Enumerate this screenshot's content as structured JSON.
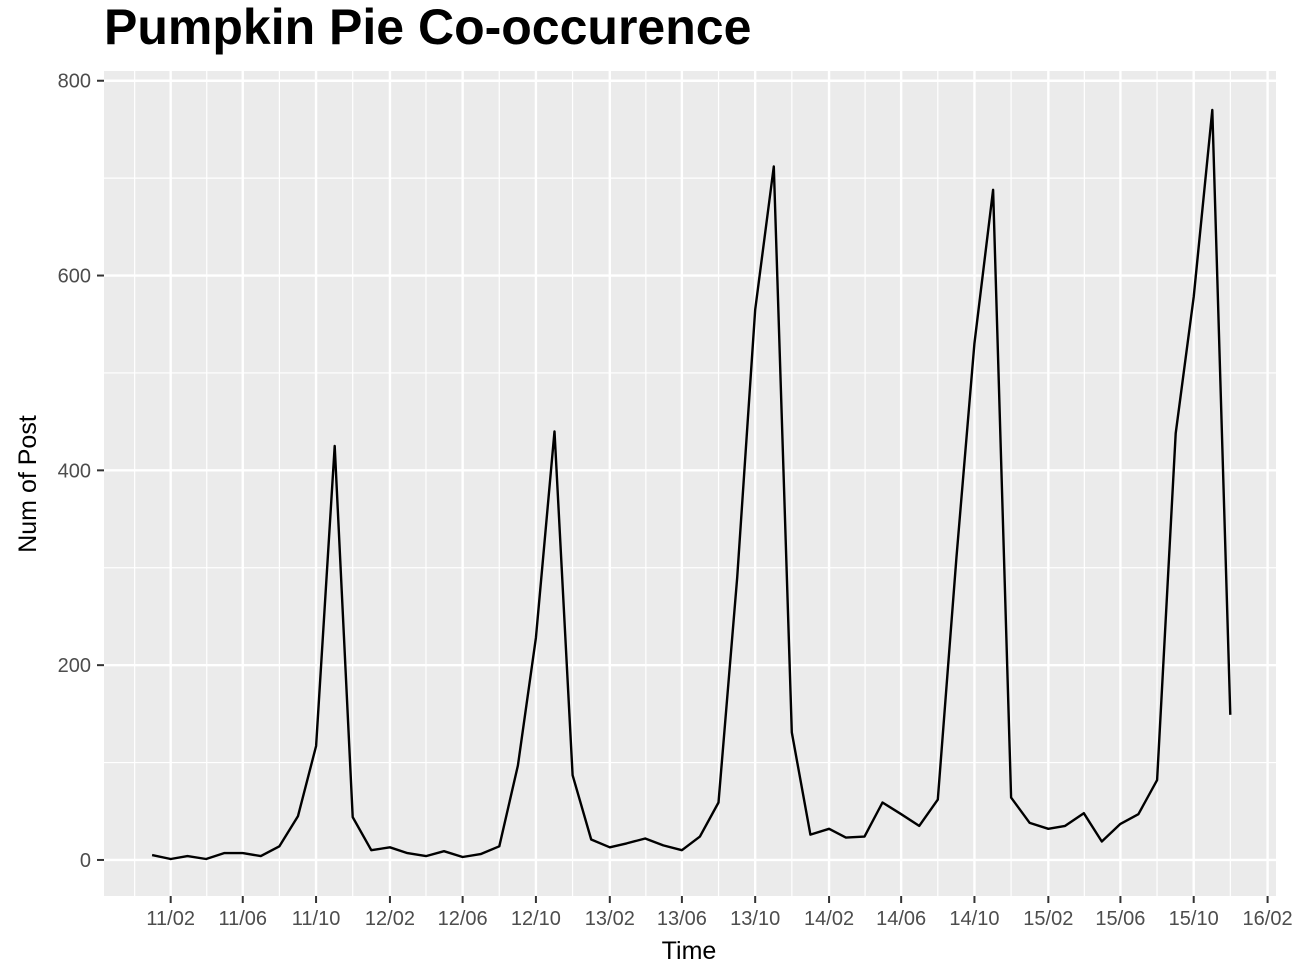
{
  "chart_data": {
    "type": "line",
    "title": "Pumpkin Pie Co-occurence",
    "xlabel": "Time",
    "ylabel": "Num of Post",
    "ylim": [
      -37,
      810
    ],
    "xlim": [
      "2010-10-13",
      "2016-02-15"
    ],
    "y_ticks": [
      {
        "value": 0,
        "label": "0"
      },
      {
        "value": 200,
        "label": "200"
      },
      {
        "value": 400,
        "label": "400"
      },
      {
        "value": 600,
        "label": "600"
      },
      {
        "value": 800,
        "label": "800"
      }
    ],
    "x_ticks": [
      {
        "date": "2011-02-01",
        "label": "11/02"
      },
      {
        "date": "2011-06-01",
        "label": "11/06"
      },
      {
        "date": "2011-10-01",
        "label": "11/10"
      },
      {
        "date": "2012-02-01",
        "label": "12/02"
      },
      {
        "date": "2012-06-01",
        "label": "12/06"
      },
      {
        "date": "2012-10-01",
        "label": "12/10"
      },
      {
        "date": "2013-02-01",
        "label": "13/02"
      },
      {
        "date": "2013-06-01",
        "label": "13/06"
      },
      {
        "date": "2013-10-01",
        "label": "13/10"
      },
      {
        "date": "2014-02-01",
        "label": "14/02"
      },
      {
        "date": "2014-06-01",
        "label": "14/06"
      },
      {
        "date": "2014-10-01",
        "label": "14/10"
      },
      {
        "date": "2015-02-01",
        "label": "15/02"
      },
      {
        "date": "2015-06-01",
        "label": "15/06"
      },
      {
        "date": "2015-10-01",
        "label": "15/10"
      },
      {
        "date": "2016-02-01",
        "label": "16/02"
      }
    ],
    "grid": true,
    "colors": {
      "line": "#000000",
      "panel": "#ebebeb",
      "grid": "#ffffff"
    },
    "series": [
      {
        "x": [
          "2011-01-01",
          "2011-02-01",
          "2011-03-01",
          "2011-04-01",
          "2011-05-01",
          "2011-06-01",
          "2011-07-01",
          "2011-08-01",
          "2011-09-01",
          "2011-10-01",
          "2011-11-01",
          "2011-12-01",
          "2012-01-01",
          "2012-02-01",
          "2012-03-01",
          "2012-04-01",
          "2012-05-01",
          "2012-06-01",
          "2012-07-01",
          "2012-08-01",
          "2012-09-01",
          "2012-10-01",
          "2012-11-01",
          "2012-12-01",
          "2013-01-01",
          "2013-02-01",
          "2013-03-01",
          "2013-04-01",
          "2013-05-01",
          "2013-06-01",
          "2013-07-01",
          "2013-08-01",
          "2013-09-01",
          "2013-10-01",
          "2013-11-01",
          "2013-12-01",
          "2014-01-01",
          "2014-02-01",
          "2014-03-01",
          "2014-04-01",
          "2014-05-01",
          "2014-06-01",
          "2014-07-01",
          "2014-08-01",
          "2014-09-01",
          "2014-10-01",
          "2014-11-01",
          "2014-12-01",
          "2015-01-01",
          "2015-02-01",
          "2015-03-01",
          "2015-04-01",
          "2015-05-01",
          "2015-06-01",
          "2015-07-01",
          "2015-08-01",
          "2015-09-01",
          "2015-10-01",
          "2015-11-01",
          "2015-12-01"
        ],
        "values": [
          5,
          1,
          4,
          1,
          7,
          7,
          4,
          14,
          45,
          117,
          425,
          44,
          10,
          13,
          7,
          4,
          9,
          3,
          6,
          14,
          97,
          228,
          440,
          87,
          21,
          13,
          17,
          22,
          15,
          10,
          24,
          59,
          290,
          565,
          712,
          131,
          26,
          32,
          23,
          24,
          59,
          47,
          35,
          62,
          310,
          530,
          688,
          64,
          38,
          32,
          35,
          48,
          19,
          37,
          47,
          82,
          438,
          578,
          770,
          149
        ]
      }
    ]
  }
}
